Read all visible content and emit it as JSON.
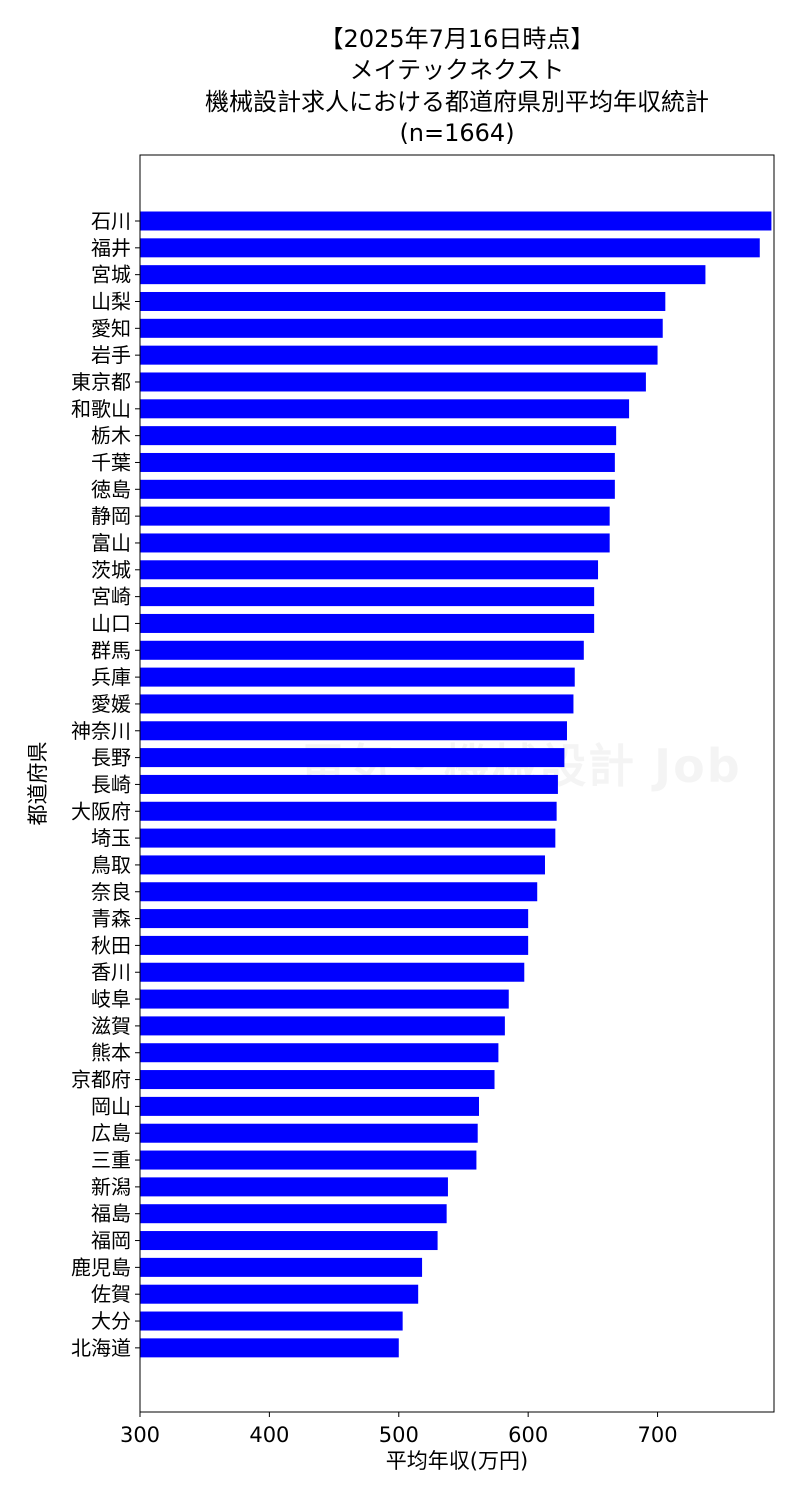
{
  "chart_data": {
    "type": "bar",
    "orientation": "horizontal",
    "title_lines": [
      "【2025年7月16日時点】",
      "メイテックネクスト",
      "機械設計求人における都道府県別平均年収統計",
      "(n=1664)"
    ],
    "xlabel": "平均年収(万円)",
    "ylabel": "都道府県",
    "xlim": [
      300,
      790
    ],
    "xticks": [
      300,
      400,
      500,
      600,
      700
    ],
    "bar_color": "#0000ff",
    "grid": false,
    "categories": [
      "石川",
      "福井",
      "宮城",
      "山梨",
      "愛知",
      "岩手",
      "東京都",
      "和歌山",
      "栃木",
      "千葉",
      "徳島",
      "静岡",
      "富山",
      "茨城",
      "宮崎",
      "山口",
      "群馬",
      "兵庫",
      "愛媛",
      "神奈川",
      "長野",
      "長崎",
      "大阪府",
      "埼玉",
      "鳥取",
      "奈良",
      "青森",
      "秋田",
      "香川",
      "岐阜",
      "滋賀",
      "熊本",
      "京都府",
      "岡山",
      "広島",
      "三重",
      "新潟",
      "福島",
      "福岡",
      "鹿児島",
      "佐賀",
      "大分",
      "北海道"
    ],
    "values": [
      788,
      779,
      737,
      706,
      704,
      700,
      691,
      678,
      668,
      667,
      667,
      663,
      663,
      654,
      651,
      651,
      643,
      636,
      635,
      630,
      628,
      623,
      622,
      621,
      613,
      607,
      600,
      600,
      597,
      585,
      582,
      577,
      574,
      562,
      561,
      560,
      538,
      537,
      530,
      518,
      515,
      503,
      500
    ]
  },
  "watermark": "電気・機械設計 Job"
}
